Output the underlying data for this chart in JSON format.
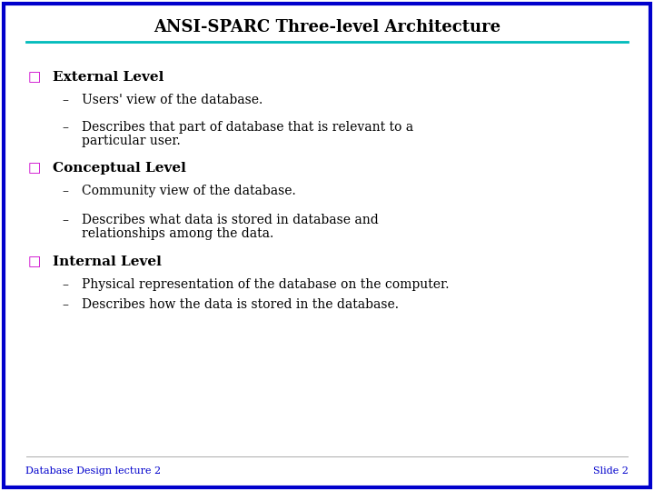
{
  "title": "ANSI-SPARC Three-level Architecture",
  "background_color": "#ffffff",
  "border_color": "#0000cc",
  "title_color": "#000000",
  "title_line_color": "#00bbbb",
  "bullet_color": "#cc00cc",
  "text_color": "#000000",
  "footer_color": "#0000cc",
  "footer_left": "Database Design lecture 2",
  "footer_right": "Slide 2",
  "title_fontsize": 13,
  "heading_fontsize": 11,
  "body_fontsize": 10,
  "footer_fontsize": 8,
  "sections": [
    {
      "heading": "External Level",
      "bullets": [
        "Users' view of the database.",
        "Describes that part of database that is relevant to a\nparticular user."
      ]
    },
    {
      "heading": "Conceptual Level",
      "bullets": [
        "Community view of the database.",
        "Describes what data is stored in database and\nrelationships among the data."
      ]
    },
    {
      "heading": "Internal Level",
      "bullets": [
        "Physical representation of the database on the computer.",
        "Describes how the data is stored in the database."
      ]
    }
  ]
}
